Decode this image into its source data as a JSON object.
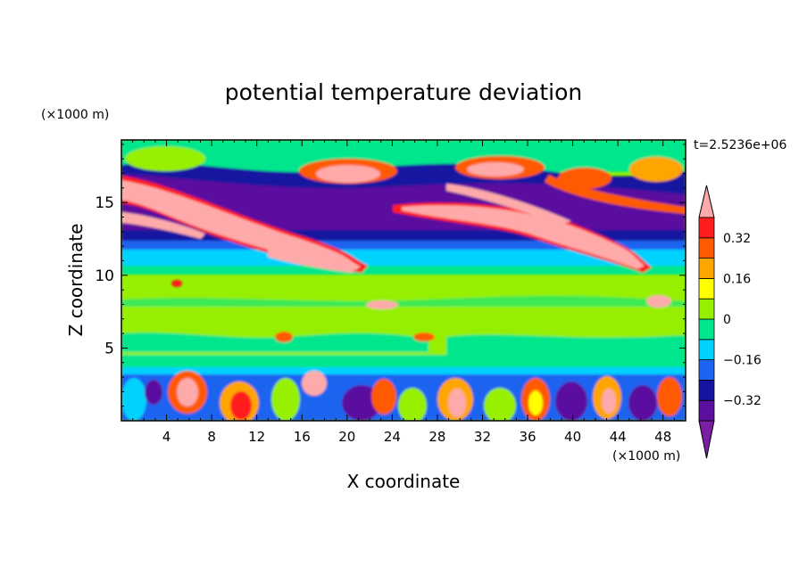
{
  "chart_data": {
    "type": "heatmap",
    "title": "potential temperature deviation",
    "xlabel": "X coordinate",
    "ylabel": "Z coordinate",
    "x_unit": "(×1000 m)",
    "y_unit": "(×1000 m)",
    "time_label": "t=2.5236e+06",
    "xlim": [
      0,
      50
    ],
    "ylim": [
      0,
      19.3
    ],
    "x_ticks": [
      4,
      8,
      12,
      16,
      20,
      24,
      28,
      32,
      36,
      40,
      44,
      48
    ],
    "x_tick_labels": [
      "4",
      "8",
      "12",
      "16",
      "20",
      "24",
      "28",
      "32",
      "36",
      "40",
      "44",
      "48"
    ],
    "y_ticks": [
      5,
      10,
      15
    ],
    "y_tick_labels": [
      "5",
      "10",
      "15"
    ],
    "colorbar": {
      "levels": [
        -0.4,
        -0.32,
        -0.24,
        -0.16,
        -0.08,
        0,
        0.08,
        0.16,
        0.24,
        0.32,
        0.4
      ],
      "labeled_levels": [
        0.32,
        0.16,
        0,
        -0.16,
        -0.32
      ],
      "labels": [
        "0.32",
        "0.16",
        "0",
        "−0.16",
        "−0.32"
      ],
      "colors_low_to_high": [
        "#7a1fa2",
        "#5a0f9e",
        "#1414a0",
        "#1e64f0",
        "#00d2ff",
        "#00e68c",
        "#96f000",
        "#ffff00",
        "#ffa500",
        "#ff5a00",
        "#ff1e1e",
        "#ffaaaa"
      ],
      "extend": "both"
    }
  }
}
